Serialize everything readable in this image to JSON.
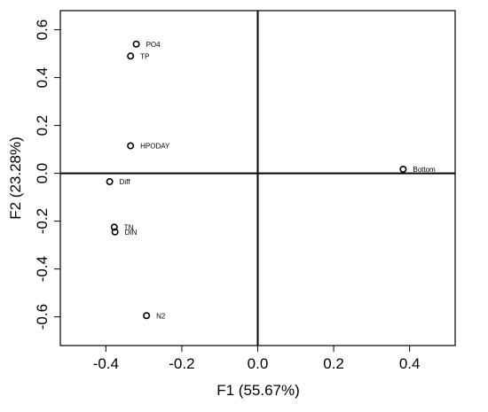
{
  "chart_data": {
    "type": "scatter",
    "xlabel": "F1 (55.67%)",
    "ylabel": "F2 (23.28%)",
    "xlim": [
      -0.52,
      0.52
    ],
    "ylim": [
      -0.72,
      0.68
    ],
    "xticks": [
      -0.4,
      -0.2,
      0.0,
      0.2,
      0.4
    ],
    "xtick_labels": [
      "-0.4",
      "-0.2",
      "0.0",
      "0.2",
      "0.4"
    ],
    "yticks": [
      -0.6,
      -0.4,
      -0.2,
      0.0,
      0.2,
      0.4,
      0.6
    ],
    "ytick_labels": [
      "-0.6",
      "-0.4",
      "-0.2",
      "0.0",
      "0.2",
      "0.4",
      "0.6"
    ],
    "reference_lines": {
      "x": 0,
      "y": 0
    },
    "grid": false,
    "points": [
      {
        "label": "PO4",
        "x": -0.32,
        "y": 0.54
      },
      {
        "label": "TP",
        "x": -0.335,
        "y": 0.49
      },
      {
        "label": "HPODAY",
        "x": -0.335,
        "y": 0.115
      },
      {
        "label": "Diff",
        "x": -0.39,
        "y": -0.035
      },
      {
        "label": "TN",
        "x": -0.378,
        "y": -0.225
      },
      {
        "label": "DIN",
        "x": -0.376,
        "y": -0.245
      },
      {
        "label": "N2",
        "x": -0.293,
        "y": -0.595
      },
      {
        "label": "Bottom",
        "x": 0.383,
        "y": 0.017
      }
    ],
    "colors": {
      "marker": "#000000",
      "axis": "#000000"
    }
  }
}
